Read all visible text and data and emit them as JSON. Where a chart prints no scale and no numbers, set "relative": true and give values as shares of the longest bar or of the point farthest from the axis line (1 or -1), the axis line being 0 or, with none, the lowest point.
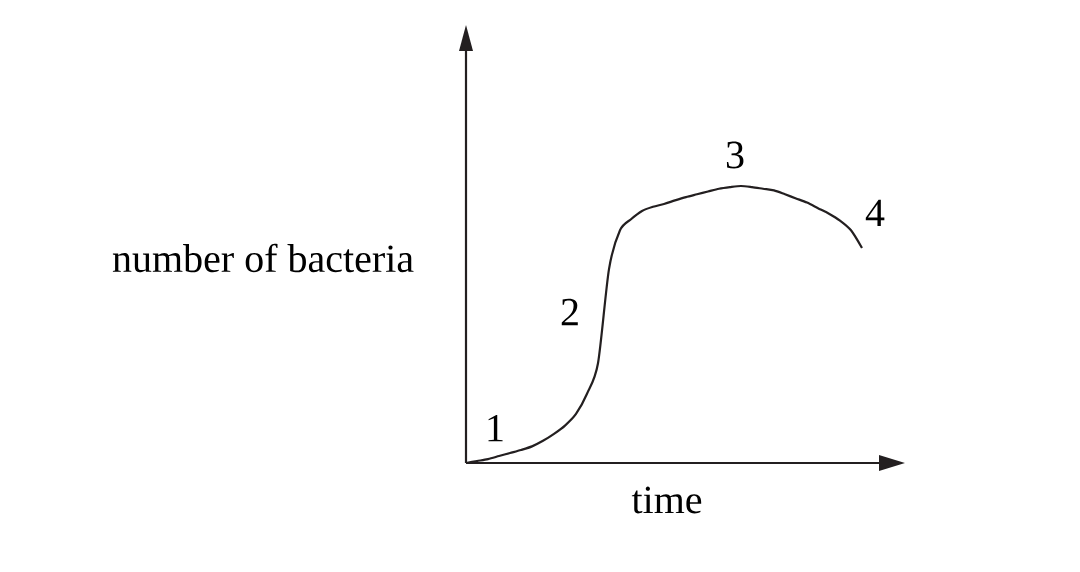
{
  "chart_data": {
    "type": "line",
    "relative": true,
    "xlabel": "time",
    "ylabel": "number of bacteria",
    "color": "#231f20",
    "categories": [
      null,
      null,
      null,
      null,
      null,
      null,
      null,
      null,
      null,
      null,
      null,
      null,
      null,
      null,
      null,
      null,
      null,
      null,
      null,
      null,
      null,
      null,
      null,
      null,
      null,
      null,
      null,
      null,
      null,
      null,
      null,
      null,
      null,
      null,
      null,
      null,
      null
    ],
    "values": [
      0,
      0.007,
      0.014,
      0.025,
      0.036,
      0.047,
      0.06,
      0.08,
      0.105,
      0.135,
      0.177,
      0.25,
      0.36,
      0.7,
      0.84,
      0.88,
      0.91,
      0.925,
      0.935,
      0.948,
      0.96,
      0.97,
      0.98,
      0.99,
      0.996,
      1,
      0.996,
      0.99,
      0.984,
      0.97,
      0.955,
      0.94,
      0.92,
      0.9,
      0.875,
      0.84,
      0.776
    ],
    "annotations": [
      "1",
      "2",
      "3",
      "4"
    ]
  }
}
